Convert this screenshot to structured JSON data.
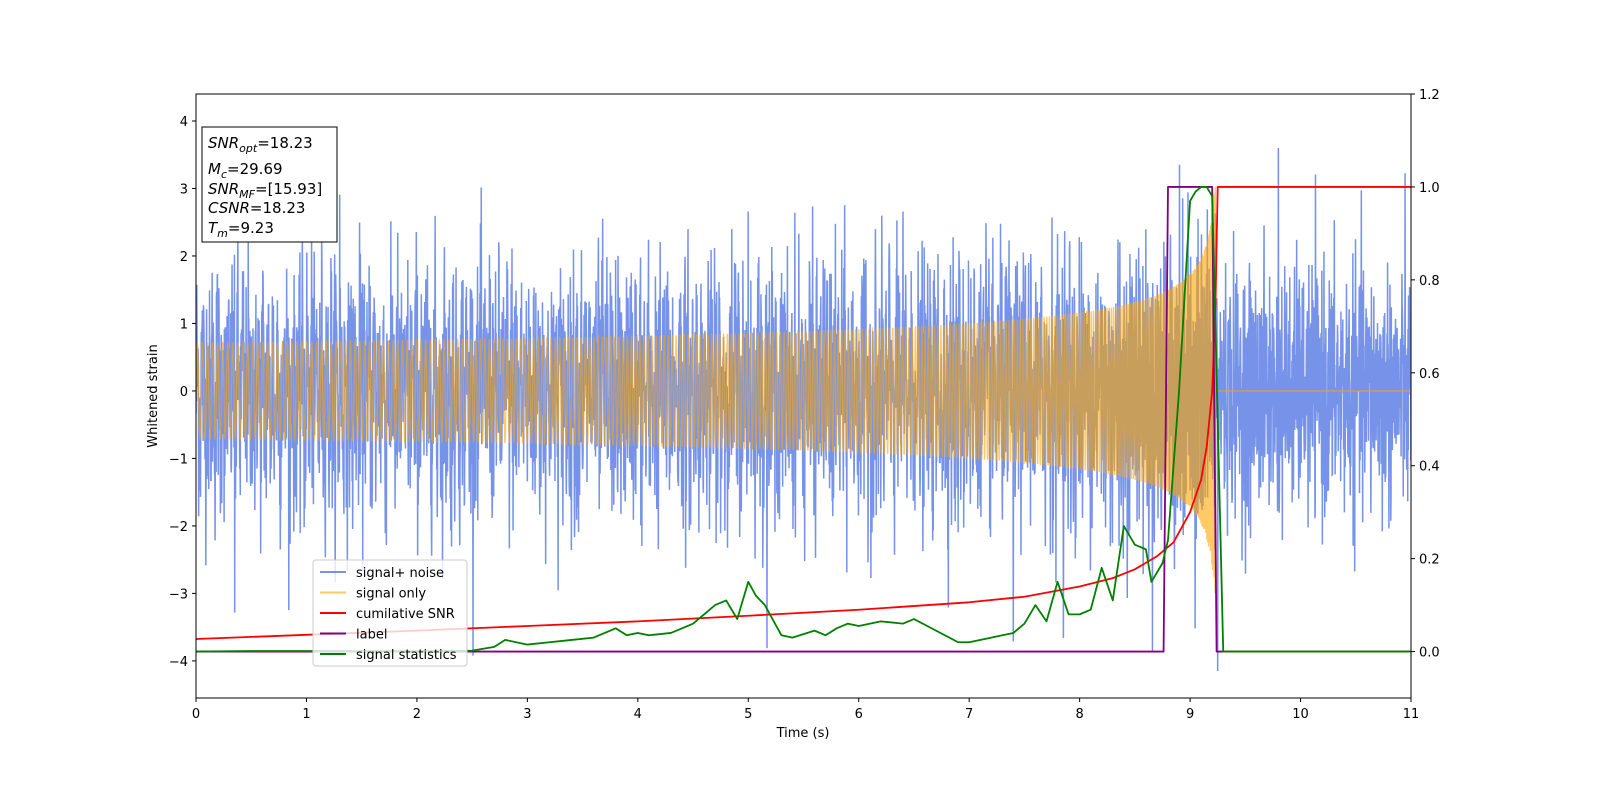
{
  "chart_data": {
    "type": "line",
    "title": "",
    "xlabel": "Time (s)",
    "ylabel": "Whitened strain",
    "xlim": [
      0,
      11
    ],
    "ylim_left": [
      -4.55,
      4.4
    ],
    "ylim_right": [
      -0.1,
      1.2
    ],
    "x_ticks": [
      0,
      1,
      2,
      3,
      4,
      5,
      6,
      7,
      8,
      9,
      10,
      11
    ],
    "y_left_ticks": [
      -4,
      -3,
      -2,
      -1,
      0,
      1,
      2,
      3,
      4
    ],
    "y_right_ticks": [
      0.0,
      0.2,
      0.4,
      0.6,
      0.8,
      1.0,
      1.2
    ],
    "grid": false,
    "legend_position": "lower-left",
    "info_box": {
      "lines": [
        {
          "base": "SNR",
          "sub": "opt",
          "value": "=18.23"
        },
        {
          "base": "M",
          "sub": "c",
          "value": "=29.69"
        },
        {
          "base": "SNR",
          "sub": "MF",
          "value": "=[15.93]"
        },
        {
          "base": "CSNR",
          "sub": "",
          "value": "=18.23"
        },
        {
          "base": "T",
          "sub": "m",
          "value": "=9.23"
        }
      ]
    },
    "series": [
      {
        "name": "signal+ noise",
        "axis": "left",
        "color": "#4169e1",
        "opacity": 0.72,
        "noise": {
          "sample_step": 0.0024,
          "sigma": 0.9,
          "clip": [
            -4.2,
            4.0
          ]
        },
        "peaks": [
          [
            0.35,
            -2.95
          ],
          [
            1.3,
            2.85
          ],
          [
            5.0,
            3.1
          ],
          [
            9.25,
            4.0
          ],
          [
            9.25,
            -4.15
          ],
          [
            9.8,
            3.6
          ],
          [
            7.4,
            -3.1
          ]
        ]
      },
      {
        "name": "signal only",
        "axis": "left",
        "color": "#ffa500",
        "opacity": 0.6,
        "chirp": {
          "t_merge": 9.23,
          "peak_amplitude": 3.35
        }
      },
      {
        "name": "cumilative SNR",
        "axis": "right",
        "color": "#ff0000",
        "x": [
          0,
          1,
          2,
          3,
          4,
          5,
          6,
          7,
          7.5,
          8,
          8.3,
          8.5,
          8.7,
          8.85,
          9.0,
          9.1,
          9.15,
          9.2,
          9.23,
          9.25,
          11
        ],
        "y": [
          0.027,
          0.036,
          0.045,
          0.055,
          0.065,
          0.077,
          0.09,
          0.106,
          0.118,
          0.14,
          0.158,
          0.177,
          0.205,
          0.235,
          0.3,
          0.37,
          0.44,
          0.56,
          0.75,
          1.0,
          1.0
        ]
      },
      {
        "name": "label",
        "axis": "right",
        "color": "#800080",
        "x": [
          0,
          8.76,
          8.8,
          9.2,
          9.24,
          11
        ],
        "y": [
          0,
          0,
          1,
          1,
          0,
          0
        ]
      },
      {
        "name": "signal statistics",
        "axis": "right",
        "color": "#008000",
        "x": [
          0,
          0.5,
          1,
          1.5,
          2,
          2.5,
          2.7,
          2.8,
          3.0,
          3.2,
          3.4,
          3.6,
          3.8,
          3.9,
          4.0,
          4.1,
          4.3,
          4.5,
          4.7,
          4.8,
          4.9,
          5.0,
          5.07,
          5.15,
          5.3,
          5.4,
          5.6,
          5.7,
          5.8,
          5.9,
          6.0,
          6.2,
          6.4,
          6.5,
          6.7,
          6.9,
          7.0,
          7.2,
          7.4,
          7.5,
          7.6,
          7.7,
          7.8,
          7.9,
          8.0,
          8.1,
          8.2,
          8.3,
          8.4,
          8.5,
          8.6,
          8.65,
          8.75,
          8.8,
          8.9,
          9.0,
          9.05,
          9.1,
          9.15,
          9.2,
          9.25,
          9.3,
          11
        ],
        "y": [
          0.0,
          0.001,
          0.001,
          0.001,
          0.001,
          0.002,
          0.01,
          0.025,
          0.015,
          0.02,
          0.025,
          0.03,
          0.05,
          0.035,
          0.04,
          0.035,
          0.04,
          0.06,
          0.1,
          0.11,
          0.07,
          0.15,
          0.12,
          0.1,
          0.035,
          0.03,
          0.045,
          0.035,
          0.05,
          0.06,
          0.055,
          0.065,
          0.06,
          0.07,
          0.045,
          0.02,
          0.02,
          0.03,
          0.04,
          0.06,
          0.1,
          0.065,
          0.15,
          0.08,
          0.08,
          0.09,
          0.18,
          0.11,
          0.27,
          0.23,
          0.22,
          0.15,
          0.19,
          0.24,
          0.56,
          0.97,
          0.99,
          1.0,
          1.0,
          0.98,
          0.5,
          0.0,
          0.0
        ]
      }
    ]
  }
}
